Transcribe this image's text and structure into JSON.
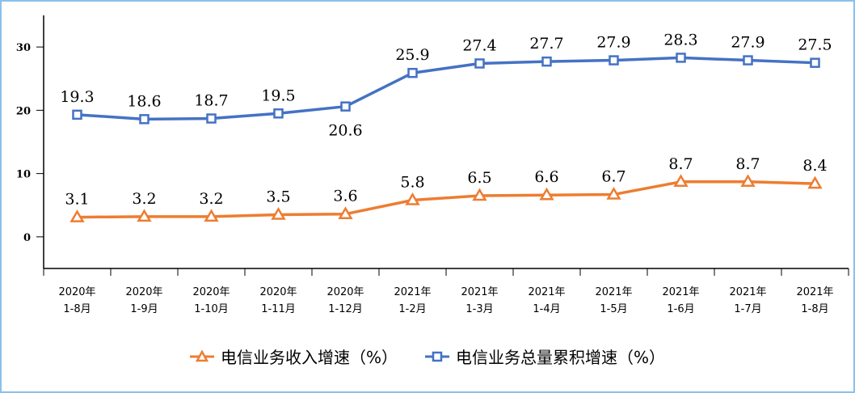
{
  "chart_data": {
    "type": "line",
    "categories": [
      "2020年\n1-8月",
      "2020年\n1-9月",
      "2020年\n1-10月",
      "2020年\n1-11月",
      "2020年\n1-12月",
      "2021年\n1-2月",
      "2021年\n1-3月",
      "2021年\n1-4月",
      "2021年\n1-5月",
      "2021年\n1-6月",
      "2021年\n1-7月",
      "2021年\n1-8月"
    ],
    "series": [
      {
        "name": "电信业务收入增速（%）",
        "color": "#ed7d31",
        "marker": "triangle",
        "values": [
          3.1,
          3.2,
          3.2,
          3.5,
          3.6,
          5.8,
          6.5,
          6.6,
          6.7,
          8.7,
          8.7,
          8.4
        ],
        "labels": [
          "3.1",
          "3.2",
          "3.2",
          "3.5",
          "3.6",
          "5.8",
          "6.5",
          "6.6",
          "6.7",
          "8.7",
          "8.7",
          "8.4"
        ]
      },
      {
        "name": "电信业务总量累积增速（%）",
        "color": "#4472c4",
        "marker": "square",
        "values": [
          19.3,
          18.6,
          18.7,
          19.5,
          20.6,
          25.9,
          27.4,
          27.7,
          27.9,
          28.3,
          27.9,
          27.5
        ],
        "labels": [
          "19.3",
          "18.6",
          "18.7",
          "19.5",
          "20.6",
          "25.9",
          "27.4",
          "27.7",
          "27.9",
          "28.3",
          "27.9",
          "27.5"
        ]
      }
    ],
    "yticks": [
      "0",
      "10",
      "20",
      "30"
    ],
    "ylim": [
      -5,
      35
    ],
    "grid": false,
    "legend": "bottom"
  }
}
